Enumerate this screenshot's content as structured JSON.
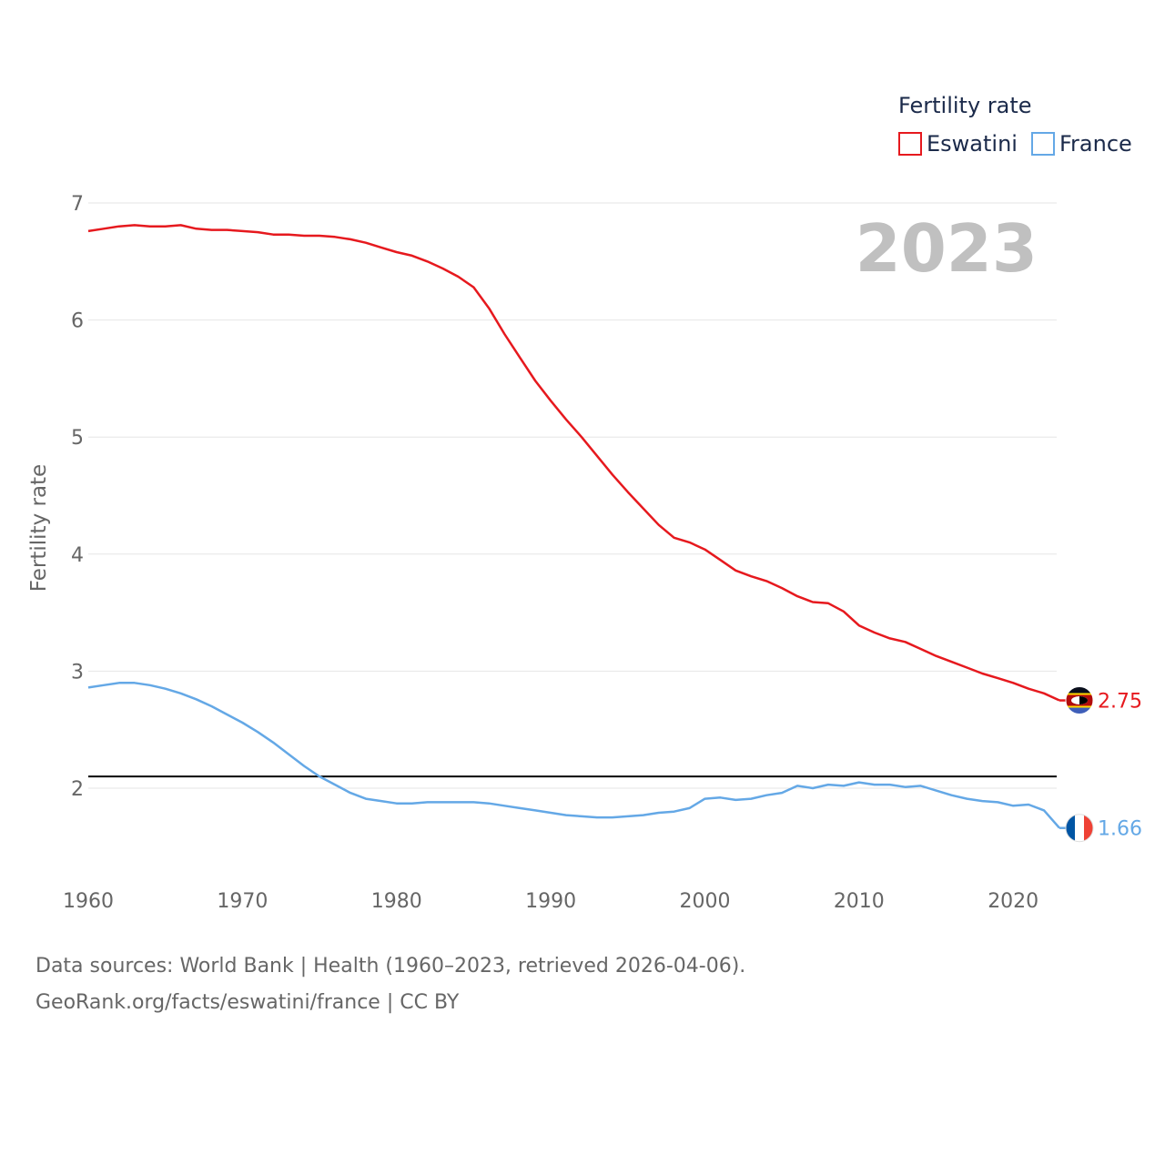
{
  "chart_data": {
    "type": "line",
    "ylabel": "Fertility rate",
    "ylim": [
      1.5,
      7.2
    ],
    "xlim": [
      1960,
      2023
    ],
    "yticks": [
      "2",
      "3",
      "4",
      "5",
      "6",
      "7"
    ],
    "xticks": [
      "1960",
      "1970",
      "1980",
      "1990",
      "2000",
      "2010",
      "2020"
    ],
    "year_label": "2023",
    "reference_line": 2.1,
    "legend": {
      "title": "Fertility rate",
      "position": "top-right"
    },
    "series": [
      {
        "name": "Eswatini",
        "color": "#e6191e",
        "end_label": "2.75",
        "flag": "eswatini-flag",
        "x": [
          1960,
          1961,
          1962,
          1963,
          1964,
          1965,
          1966,
          1967,
          1968,
          1969,
          1970,
          1971,
          1972,
          1973,
          1974,
          1975,
          1976,
          1977,
          1978,
          1979,
          1980,
          1981,
          1982,
          1983,
          1984,
          1985,
          1986,
          1987,
          1988,
          1989,
          1990,
          1991,
          1992,
          1993,
          1994,
          1995,
          1996,
          1997,
          1998,
          1999,
          2000,
          2001,
          2002,
          2003,
          2004,
          2005,
          2006,
          2007,
          2008,
          2009,
          2010,
          2011,
          2012,
          2013,
          2014,
          2015,
          2016,
          2017,
          2018,
          2019,
          2020,
          2021,
          2022,
          2023
        ],
        "values": [
          6.76,
          6.78,
          6.8,
          6.81,
          6.8,
          6.8,
          6.81,
          6.78,
          6.77,
          6.77,
          6.76,
          6.75,
          6.73,
          6.73,
          6.72,
          6.72,
          6.71,
          6.69,
          6.66,
          6.62,
          6.58,
          6.55,
          6.5,
          6.44,
          6.37,
          6.28,
          6.1,
          5.88,
          5.68,
          5.48,
          5.31,
          5.15,
          5.0,
          4.84,
          4.68,
          4.53,
          4.39,
          4.25,
          4.14,
          4.1,
          4.04,
          3.95,
          3.86,
          3.81,
          3.77,
          3.71,
          3.64,
          3.59,
          3.58,
          3.51,
          3.39,
          3.33,
          3.28,
          3.25,
          3.19,
          3.13,
          3.08,
          3.03,
          2.98,
          2.94,
          2.9,
          2.85,
          2.81,
          2.75
        ]
      },
      {
        "name": "France",
        "color": "#64a8e6",
        "end_label": "1.66",
        "flag": "france-flag",
        "x": [
          1960,
          1961,
          1962,
          1963,
          1964,
          1965,
          1966,
          1967,
          1968,
          1969,
          1970,
          1971,
          1972,
          1973,
          1974,
          1975,
          1976,
          1977,
          1978,
          1979,
          1980,
          1981,
          1982,
          1983,
          1984,
          1985,
          1986,
          1987,
          1988,
          1989,
          1990,
          1991,
          1992,
          1993,
          1994,
          1995,
          1996,
          1997,
          1998,
          1999,
          2000,
          2001,
          2002,
          2003,
          2004,
          2005,
          2006,
          2007,
          2008,
          2009,
          2010,
          2011,
          2012,
          2013,
          2014,
          2015,
          2016,
          2017,
          2018,
          2019,
          2020,
          2021,
          2022,
          2023
        ],
        "values": [
          2.86,
          2.88,
          2.9,
          2.9,
          2.88,
          2.85,
          2.81,
          2.76,
          2.7,
          2.63,
          2.56,
          2.48,
          2.39,
          2.29,
          2.19,
          2.1,
          2.03,
          1.96,
          1.91,
          1.89,
          1.87,
          1.87,
          1.88,
          1.88,
          1.88,
          1.88,
          1.87,
          1.85,
          1.83,
          1.81,
          1.79,
          1.77,
          1.76,
          1.75,
          1.75,
          1.76,
          1.77,
          1.79,
          1.8,
          1.83,
          1.91,
          1.92,
          1.9,
          1.91,
          1.94,
          1.96,
          2.02,
          2.0,
          2.03,
          2.02,
          2.05,
          2.03,
          2.03,
          2.01,
          2.02,
          1.98,
          1.94,
          1.91,
          1.89,
          1.88,
          1.85,
          1.86,
          1.81,
          1.66
        ]
      }
    ]
  },
  "source": {
    "line1": "Data sources: World Bank | Health (1960–2023, retrieved 2026-04-06).",
    "line2": "GeoRank.org/facts/eswatini/france | CC BY"
  }
}
